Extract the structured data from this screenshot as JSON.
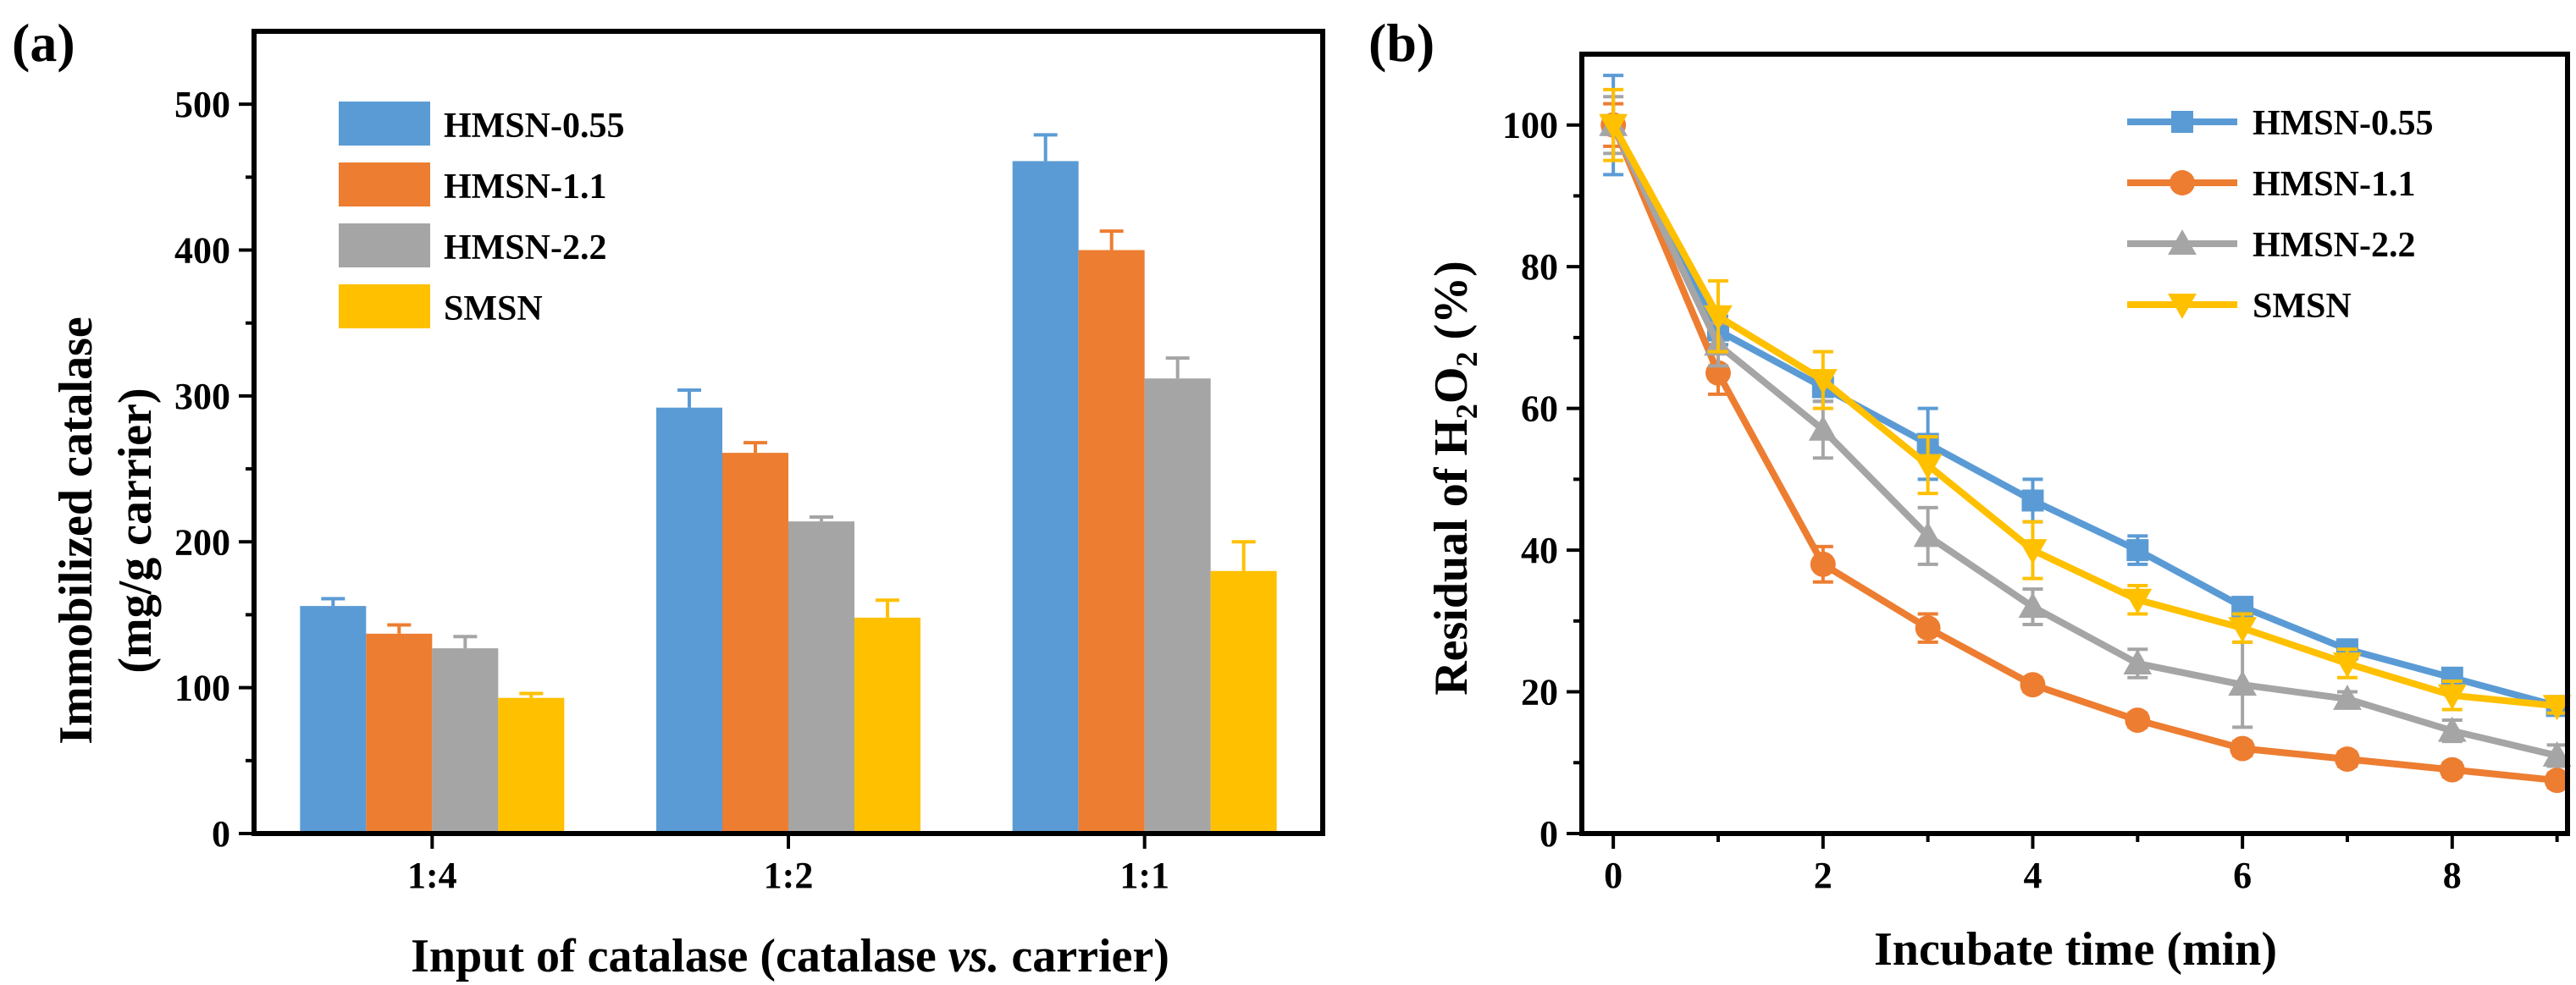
{
  "colors": {
    "HMSN-0.55": "#5b9bd5",
    "HMSN-1.1": "#ed7d31",
    "HMSN-2.2": "#a5a5a5",
    "SMSN": "#ffc000"
  },
  "chart_data": [
    {
      "panel_label": "(a)",
      "type": "bar",
      "title": "",
      "xlabel_parts": [
        "Input of catalase (catalase ",
        "vs.",
        " carrier)"
      ],
      "ylabel": "Immobilized catalase",
      "ylabel2": "(mg/g carrier)",
      "categories": [
        "1:4",
        "1:2",
        "1:1"
      ],
      "ylim": [
        0,
        550
      ],
      "yticks": [
        0,
        100,
        200,
        300,
        400,
        500
      ],
      "yticklabels": [
        "0",
        "100",
        "200",
        "300",
        "400",
        "500"
      ],
      "legend_position": "top-left",
      "series": [
        {
          "name": "HMSN-0.55",
          "values": [
            156,
            292,
            461
          ],
          "errors": [
            5,
            12,
            18
          ]
        },
        {
          "name": "HMSN-1.1",
          "values": [
            137,
            261,
            400
          ],
          "errors": [
            6,
            7,
            13
          ]
        },
        {
          "name": "HMSN-2.2",
          "values": [
            127,
            214,
            312
          ],
          "errors": [
            8,
            3,
            14
          ]
        },
        {
          "name": "SMSN",
          "values": [
            93,
            148,
            180
          ],
          "errors": [
            3,
            12,
            20
          ]
        }
      ]
    },
    {
      "panel_label": "(b)",
      "type": "line",
      "title": "",
      "xlabel": "Incubate time (min)",
      "ylabel_parts": [
        "Residual of H",
        "2",
        "O",
        "2",
        " (%)"
      ],
      "x": [
        0,
        1,
        2,
        3,
        4,
        5,
        6,
        7,
        8,
        9
      ],
      "xlim": [
        -0.3,
        9.1
      ],
      "ylim": [
        0,
        110
      ],
      "xticks": [
        0,
        2,
        4,
        6,
        8
      ],
      "xticklabels": [
        "0",
        "2",
        "4",
        "6",
        "8"
      ],
      "yticks": [
        0,
        20,
        40,
        60,
        80,
        100
      ],
      "yticklabels": [
        "0",
        "20",
        "40",
        "60",
        "80",
        "100"
      ],
      "legend_position": "top-right",
      "series": [
        {
          "name": "HMSN-0.55",
          "marker": "square",
          "values": [
            100,
            71,
            63,
            55,
            47,
            40,
            32,
            26,
            22,
            18
          ],
          "errors": [
            7,
            2,
            2,
            5,
            3,
            2,
            1,
            1,
            1,
            1
          ]
        },
        {
          "name": "HMSN-1.1",
          "marker": "circle",
          "values": [
            100,
            65,
            38,
            29,
            21,
            16,
            12,
            10.5,
            9,
            7.5
          ],
          "errors": [
            3,
            3,
            2.5,
            2,
            1,
            1,
            1,
            1,
            1,
            1
          ]
        },
        {
          "name": "HMSN-2.2",
          "marker": "triangle-up",
          "values": [
            100,
            69,
            57,
            42,
            32,
            24,
            21,
            19,
            14.5,
            11
          ],
          "errors": [
            4,
            3,
            4,
            4,
            2.5,
            2,
            6,
            1,
            1.5,
            1.5
          ]
        },
        {
          "name": "SMSN",
          "marker": "triangle-down",
          "values": [
            100,
            73,
            64,
            52,
            40,
            33,
            29,
            24,
            19.5,
            18
          ],
          "errors": [
            5,
            5,
            4,
            4,
            4,
            2,
            2,
            2,
            2,
            1
          ]
        }
      ]
    }
  ]
}
